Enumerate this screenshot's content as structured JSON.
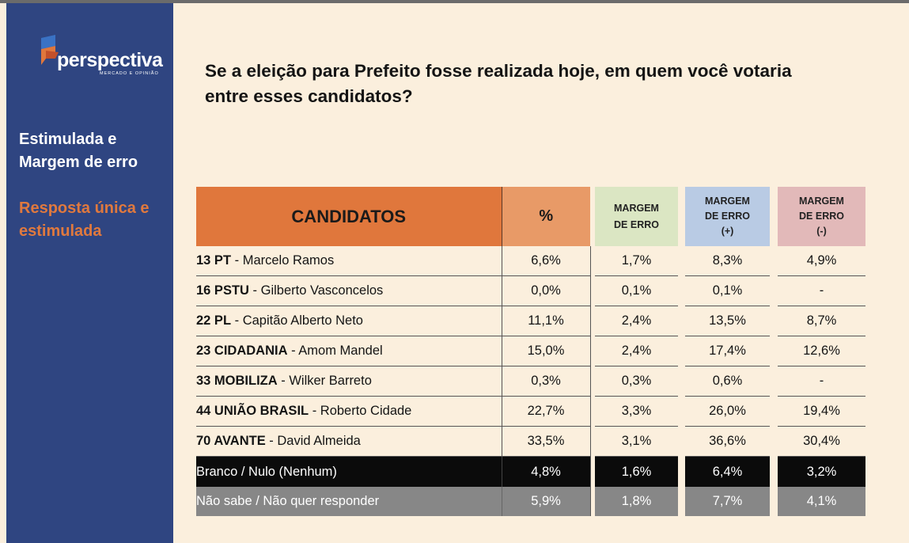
{
  "brand": {
    "name": "perspectiva",
    "tagline": "MERCADO E OPINIÃO"
  },
  "sidebar": {
    "heading": "Estimulada e Margem de erro",
    "subheading": "Resposta única e estimulada"
  },
  "question": "Se a eleição para Prefeito fosse realizada hoje, em quem você votaria entre esses candidatos?",
  "table": {
    "headers": {
      "candidates": "CANDIDATOS",
      "percent": "%",
      "margin_line1": "MARGEM",
      "margin_line2": "DE ERRO",
      "margin_plus_line1": "MARGEM",
      "margin_plus_line2": "DE ERRO",
      "margin_plus_line3": "(+)",
      "margin_minus_line1": "MARGEM",
      "margin_minus_line2": "DE ERRO",
      "margin_minus_line3": "(-)"
    },
    "rows": [
      {
        "party": "13 PT",
        "name": " - Marcelo Ramos",
        "pct": "6,6%",
        "me": "1,7%",
        "plus": "8,3%",
        "minus": "4,9%"
      },
      {
        "party": "16 PSTU",
        "name": " - Gilberto Vasconcelos",
        "pct": "0,0%",
        "me": "0,1%",
        "plus": "0,1%",
        "minus": "-"
      },
      {
        "party": "22 PL",
        "name": " - Capitão Alberto Neto",
        "pct": "11,1%",
        "me": "2,4%",
        "plus": "13,5%",
        "minus": "8,7%"
      },
      {
        "party": "23 CIDADANIA",
        "name": " - Amom Mandel",
        "pct": "15,0%",
        "me": "2,4%",
        "plus": "17,4%",
        "minus": "12,6%"
      },
      {
        "party": "33 MOBILIZA",
        "name": " - Wilker Barreto",
        "pct": "0,3%",
        "me": "0,3%",
        "plus": "0,6%",
        "minus": "-"
      },
      {
        "party": "44 UNIÃO BRASIL",
        "name": " - Roberto Cidade",
        "pct": "22,7%",
        "me": "3,3%",
        "plus": "26,0%",
        "minus": "19,4%"
      },
      {
        "party": "70 AVANTE",
        "name": " - David Almeida",
        "pct": "33,5%",
        "me": "3,1%",
        "plus": "36,6%",
        "minus": "30,4%"
      }
    ],
    "blank_row": {
      "label": "Branco / Nulo (Nenhum)",
      "pct": "4,8%",
      "me": "1,6%",
      "plus": "6,4%",
      "minus": "3,2%"
    },
    "dk_row": {
      "label": "Não sabe / Não quer responder",
      "pct": "5,9%",
      "me": "1,8%",
      "plus": "7,7%",
      "minus": "4,1%"
    }
  },
  "colors": {
    "sidebar": "#2f4581",
    "accent_orange": "#e0773c",
    "background": "#fbefdd"
  }
}
